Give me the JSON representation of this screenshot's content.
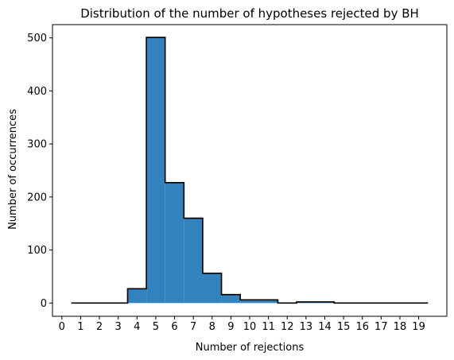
{
  "chart_data": {
    "type": "bar",
    "title": "Distribution of the number of hypotheses rejected by BH",
    "xlabel": "Number of rejections",
    "ylabel": "Number of occurrences",
    "xlim": [
      -0.5,
      20.5
    ],
    "ylim": [
      -25,
      525
    ],
    "xticks": [
      0,
      1,
      2,
      3,
      4,
      5,
      6,
      7,
      8,
      9,
      10,
      11,
      12,
      13,
      14,
      15,
      16,
      17,
      18,
      19
    ],
    "yticks": [
      0,
      100,
      200,
      300,
      400,
      500
    ],
    "categories": [
      1,
      2,
      3,
      4,
      5,
      6,
      7,
      8,
      9,
      10,
      11,
      12,
      13,
      14,
      15,
      16,
      17,
      18,
      19
    ],
    "values": [
      0,
      0,
      0,
      27,
      501,
      227,
      160,
      56,
      16,
      6,
      6,
      0,
      2,
      2,
      0,
      0,
      0,
      0,
      0
    ],
    "bin_width": 1,
    "histtype": "stepfilled",
    "fill_color": "#3182bd",
    "edge_color": "#000000",
    "grid": false,
    "legend": "none"
  }
}
